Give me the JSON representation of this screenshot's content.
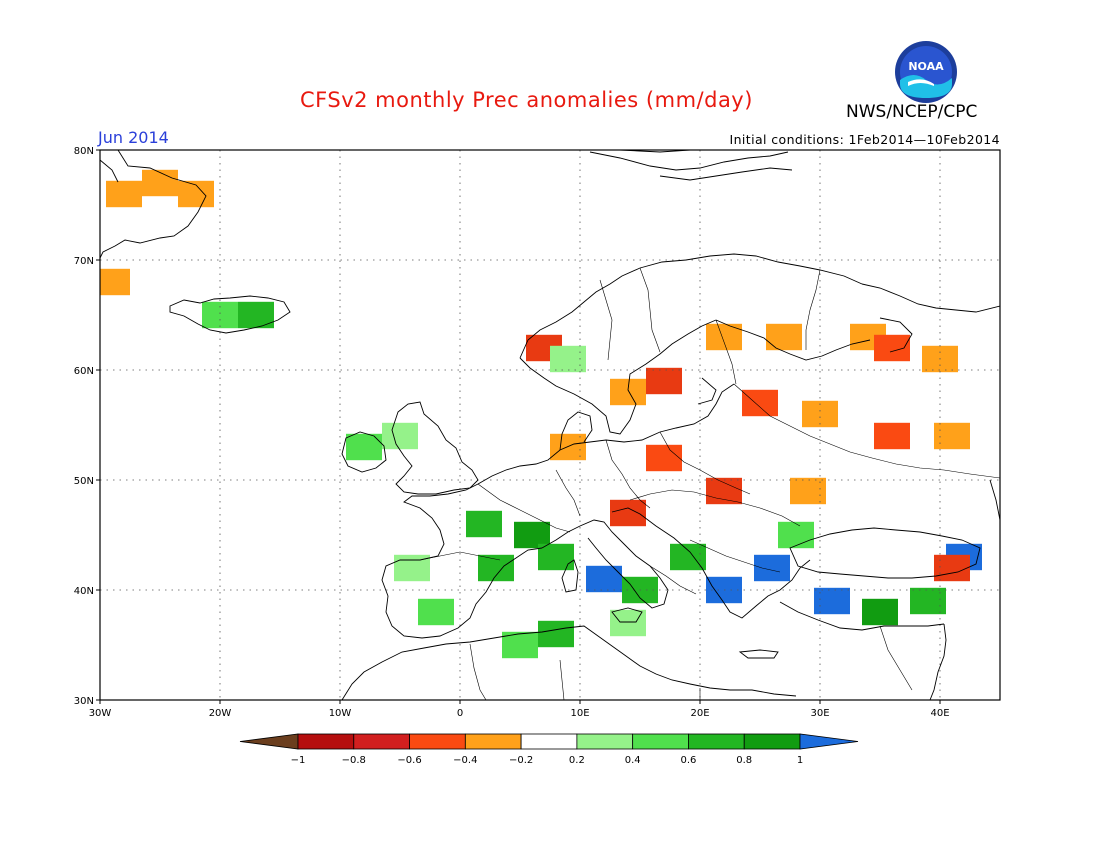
{
  "header": {
    "title": "CFSv2 monthly Prec anomalies (mm/day)",
    "period": "Jun 2014",
    "agency": "NWS/NCEP/CPC",
    "initial_conditions": "Initial conditions: 1Feb2014—10Feb2014",
    "logo_text": "NOAA"
  },
  "map": {
    "lon_range": [
      -30,
      45
    ],
    "lat_range": [
      30,
      80
    ],
    "lon_labels": [
      "30W",
      "20W",
      "10W",
      "0",
      "10E",
      "20E",
      "30E",
      "40E"
    ],
    "lat_labels": [
      "30N",
      "40N",
      "50N",
      "60N",
      "70N",
      "80N"
    ],
    "grid": "dotted",
    "anomaly_cells": [
      {
        "lon": -28,
        "lat": 76,
        "level": "-0.2"
      },
      {
        "lon": -25,
        "lat": 77,
        "level": "-0.2"
      },
      {
        "lon": -22,
        "lat": 76,
        "level": "-0.2"
      },
      {
        "lon": -29,
        "lat": 68,
        "level": "-0.2"
      },
      {
        "lon": -20,
        "lat": 65,
        "level": "0.4"
      },
      {
        "lon": -17,
        "lat": 65,
        "level": "0.6"
      },
      {
        "lon": 7,
        "lat": 62,
        "level": "-0.6"
      },
      {
        "lon": 9,
        "lat": 61,
        "level": "0.2"
      },
      {
        "lon": 14,
        "lat": 58,
        "level": "-0.2"
      },
      {
        "lon": 17,
        "lat": 59,
        "level": "-0.6"
      },
      {
        "lon": 22,
        "lat": 63,
        "level": "-0.2"
      },
      {
        "lon": 27,
        "lat": 63,
        "level": "-0.2"
      },
      {
        "lon": 34,
        "lat": 63,
        "level": "-0.2"
      },
      {
        "lon": 36,
        "lat": 62,
        "level": "-0.4"
      },
      {
        "lon": 40,
        "lat": 61,
        "level": "-0.2"
      },
      {
        "lon": 25,
        "lat": 57,
        "level": "-0.4"
      },
      {
        "lon": 30,
        "lat": 56,
        "level": "-0.2"
      },
      {
        "lon": 36,
        "lat": 54,
        "level": "-0.4"
      },
      {
        "lon": 41,
        "lat": 54,
        "level": "-0.2"
      },
      {
        "lon": 17,
        "lat": 52,
        "level": "-0.4"
      },
      {
        "lon": 9,
        "lat": 53,
        "level": "-0.2"
      },
      {
        "lon": 22,
        "lat": 49,
        "level": "-0.6"
      },
      {
        "lon": 14,
        "lat": 47,
        "level": "-0.6"
      },
      {
        "lon": 29,
        "lat": 49,
        "level": "-0.2"
      },
      {
        "lon": -5,
        "lat": 54,
        "level": "0.2"
      },
      {
        "lon": -8,
        "lat": 53,
        "level": "0.4"
      },
      {
        "lon": 2,
        "lat": 46,
        "level": "0.6"
      },
      {
        "lon": 6,
        "lat": 45,
        "level": "0.8"
      },
      {
        "lon": 3,
        "lat": 42,
        "level": "0.6"
      },
      {
        "lon": -4,
        "lat": 42,
        "level": "0.2"
      },
      {
        "lon": -2,
        "lat": 38,
        "level": "0.4"
      },
      {
        "lon": 8,
        "lat": 43,
        "level": "0.6"
      },
      {
        "lon": 12,
        "lat": 41,
        "level": "1"
      },
      {
        "lon": 15,
        "lat": 40,
        "level": "0.6"
      },
      {
        "lon": 19,
        "lat": 43,
        "level": "0.6"
      },
      {
        "lon": 22,
        "lat": 40,
        "level": "1"
      },
      {
        "lon": 26,
        "lat": 42,
        "level": "1"
      },
      {
        "lon": 28,
        "lat": 45,
        "level": "0.4"
      },
      {
        "lon": 31,
        "lat": 39,
        "level": "1"
      },
      {
        "lon": 35,
        "lat": 38,
        "level": "0.8"
      },
      {
        "lon": 39,
        "lat": 39,
        "level": "0.6"
      },
      {
        "lon": 42,
        "lat": 43,
        "level": "1"
      },
      {
        "lon": 41,
        "lat": 42,
        "level": "-0.6"
      },
      {
        "lon": 5,
        "lat": 35,
        "level": "0.4"
      },
      {
        "lon": 8,
        "lat": 36,
        "level": "0.6"
      },
      {
        "lon": 14,
        "lat": 37,
        "level": "0.2"
      }
    ]
  },
  "colorbar": {
    "labels": [
      "−1",
      "−0.8",
      "−0.6",
      "−0.4",
      "−0.2",
      "0.2",
      "0.4",
      "0.6",
      "0.8",
      "1"
    ],
    "colors": [
      "#6b3e1e",
      "#b50e0e",
      "#d21f1f",
      "#fa4a12",
      "#ffa11a",
      "#ffffff",
      "#95f28a",
      "#50e04d",
      "#23b623",
      "#119c11",
      "#1c6cdc"
    ]
  }
}
